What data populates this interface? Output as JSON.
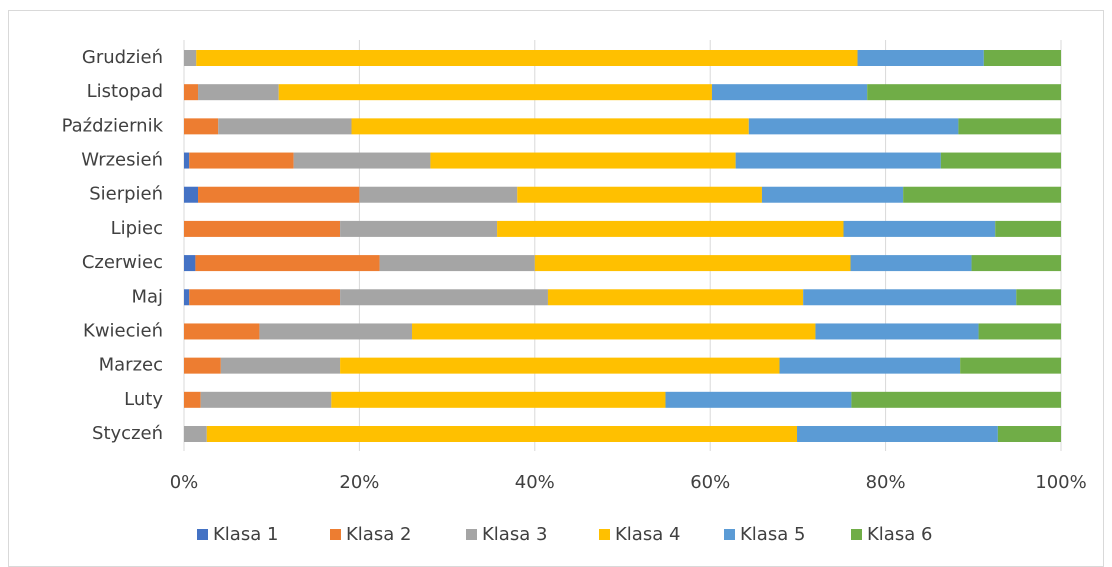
{
  "chart_data": {
    "type": "stacked_bar_horizontal",
    "categories": [
      "Styczeń",
      "Luty",
      "Marzec",
      "Kwiecień",
      "Maj",
      "Czerwiec",
      "Lipiec",
      "Sierpień",
      "Wrzesień",
      "Październik",
      "Listopad",
      "Grudzień"
    ],
    "series": [
      {
        "name": "Klasa 1",
        "color": "#4472c4",
        "values": [
          0,
          0,
          0,
          0,
          0.6,
          1.3,
          0,
          1.6,
          0.6,
          0,
          0,
          0
        ]
      },
      {
        "name": "Klasa 2",
        "color": "#ed7d31",
        "values": [
          0,
          1.9,
          4.2,
          8.6,
          17.2,
          21.0,
          17.8,
          18.4,
          11.9,
          3.9,
          1.6,
          0
        ]
      },
      {
        "name": "Klasa 3",
        "color": "#a5a5a5",
        "values": [
          2.6,
          14.9,
          13.6,
          17.4,
          23.7,
          17.7,
          17.9,
          18.0,
          15.6,
          15.2,
          9.2,
          1.4
        ]
      },
      {
        "name": "Klasa 4",
        "color": "#ffc000",
        "values": [
          67.3,
          38.1,
          50.1,
          46.0,
          29.1,
          36.0,
          39.5,
          27.9,
          34.8,
          45.3,
          49.4,
          75.4
        ]
      },
      {
        "name": "Klasa 5",
        "color": "#5b9bd5",
        "values": [
          22.9,
          21.2,
          20.6,
          18.6,
          24.3,
          13.8,
          17.3,
          16.1,
          23.4,
          23.9,
          17.7,
          14.4
        ]
      },
      {
        "name": "Klasa 6",
        "color": "#70ad47",
        "values": [
          7.2,
          23.9,
          11.5,
          9.4,
          5.1,
          10.2,
          7.5,
          18.0,
          13.7,
          11.7,
          22.1,
          8.8
        ]
      }
    ],
    "xlim": [
      0,
      100
    ],
    "xticks": [
      {
        "value": 0,
        "label": "0%"
      },
      {
        "value": 20,
        "label": "20%"
      },
      {
        "value": 40,
        "label": "40%"
      },
      {
        "value": 60,
        "label": "60%"
      },
      {
        "value": 80,
        "label": "80%"
      },
      {
        "value": 100,
        "label": "100%"
      }
    ],
    "grid": true,
    "legend": "bottom"
  }
}
